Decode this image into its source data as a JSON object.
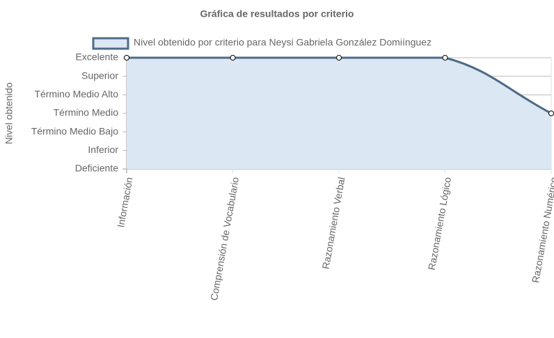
{
  "chart_data": {
    "type": "line",
    "title": "Gráfica de resultados por criterio",
    "y_label": "Nivel obtenido",
    "categories": [
      "Información",
      "Comprensión de Vocabulario",
      "Razonamiento Verbal",
      "Razonamiento Lógico",
      "Razonamiento Numérico"
    ],
    "series": [
      {
        "name": "Nivel obtenido por criterio para Neysi Gabriela González Domiínguez",
        "color": "#4e6b87",
        "fill": "#dbe7f3",
        "values": [
          6,
          6,
          6,
          6,
          3
        ]
      }
    ],
    "ylim": [
      0,
      6
    ],
    "yticks": [
      {
        "value": 0,
        "label": "Deficiente"
      },
      {
        "value": 1,
        "label": "Inferior"
      },
      {
        "value": 2,
        "label": "Término Medio Bajo"
      },
      {
        "value": 3,
        "label": "Término Medio"
      },
      {
        "value": 4,
        "label": "Término Medio Alto"
      },
      {
        "value": 5,
        "label": "Superior"
      },
      {
        "value": 6,
        "label": "Excelente"
      }
    ],
    "grid": true
  }
}
